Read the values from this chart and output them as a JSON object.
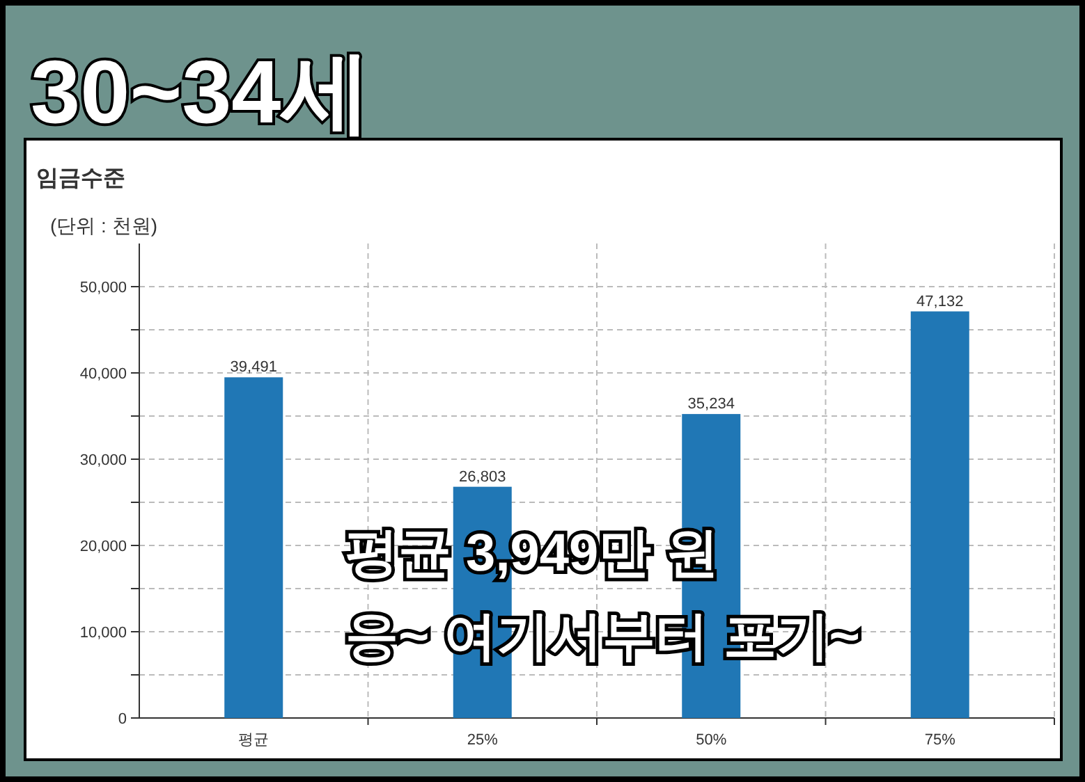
{
  "chart_data": {
    "type": "bar",
    "title": "30~34세",
    "subtitle": "임금수준",
    "ylabel": "(단위 : 천원)",
    "categories": [
      "평균",
      "25%",
      "50%",
      "75%"
    ],
    "values": [
      39491,
      26803,
      35234,
      47132
    ],
    "color": "#2077b5",
    "value_labels": [
      "39,491",
      "26,803",
      "35,234",
      "47,132"
    ],
    "ylim": [
      0,
      55000
    ],
    "yticks": [
      {
        "value": 0,
        "label": "0"
      },
      {
        "value": 5000,
        "label": null
      },
      {
        "value": 10000,
        "label": "10,000"
      },
      {
        "value": 15000,
        "label": null
      },
      {
        "value": 20000,
        "label": "20,000"
      },
      {
        "value": 25000,
        "label": null
      },
      {
        "value": 30000,
        "label": "30,000"
      },
      {
        "value": 35000,
        "label": null
      },
      {
        "value": 40000,
        "label": "40,000"
      },
      {
        "value": 45000,
        "label": null
      },
      {
        "value": 50000,
        "label": "50,000"
      }
    ],
    "grid": true,
    "annotations": [
      "평균 3,949만 원",
      "응~ 여기서부터 포기~"
    ]
  }
}
